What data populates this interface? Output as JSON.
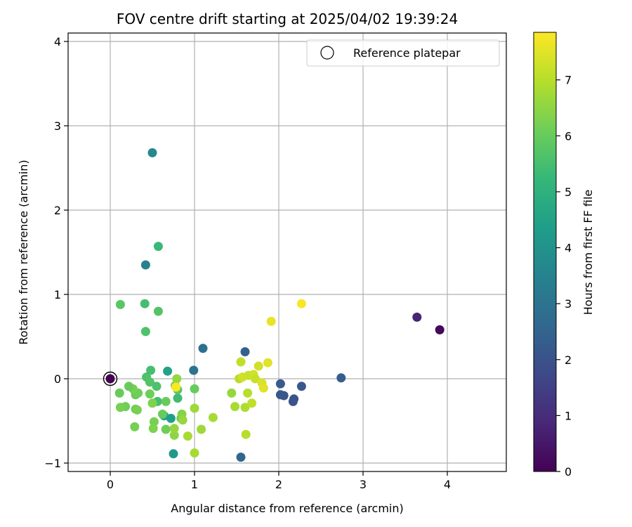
{
  "chart_data": {
    "type": "scatter",
    "title": "FOV centre drift starting at 2025/04/02 19:39:24",
    "xlabel": "Angular distance from reference (arcmin)",
    "ylabel": "Rotation from reference (arcmin)",
    "xlim": [
      -0.5,
      4.7
    ],
    "ylim": [
      -1.1,
      4.1
    ],
    "xticks": [
      0,
      1,
      2,
      3,
      4
    ],
    "yticks": [
      -1,
      0,
      1,
      2,
      3,
      4
    ],
    "grid": true,
    "legend": {
      "placement": "top-right",
      "entries": [
        "Reference platepar"
      ]
    },
    "reference_point": {
      "x": 0,
      "y": 0
    },
    "colorbar": {
      "label": "Hours from first FF file",
      "colormap": "viridis",
      "range": [
        0,
        7.85
      ],
      "ticks": [
        0,
        1,
        2,
        3,
        4,
        5,
        6,
        7
      ]
    },
    "colormap_stops": [
      "#440154",
      "#482878",
      "#3e4989",
      "#31688e",
      "#26828e",
      "#1f9e89",
      "#35b779",
      "#6ece58",
      "#b5de2b",
      "#fde725"
    ],
    "points": [
      {
        "x": 0.0,
        "y": 0.0,
        "h": 0.0
      },
      {
        "x": 3.91,
        "y": 0.58,
        "h": 0.15
      },
      {
        "x": 3.64,
        "y": 0.73,
        "h": 0.8
      },
      {
        "x": 2.74,
        "y": 0.01,
        "h": 2.3
      },
      {
        "x": 2.27,
        "y": -0.09,
        "h": 2.2
      },
      {
        "x": 2.17,
        "y": -0.27,
        "h": 2.0
      },
      {
        "x": 2.18,
        "y": -0.24,
        "h": 2.05
      },
      {
        "x": 2.06,
        "y": -0.2,
        "h": 2.1
      },
      {
        "x": 2.02,
        "y": -0.19,
        "h": 2.15
      },
      {
        "x": 2.02,
        "y": -0.06,
        "h": 2.25
      },
      {
        "x": 1.6,
        "y": 0.32,
        "h": 2.4
      },
      {
        "x": 1.55,
        "y": -0.93,
        "h": 2.6
      },
      {
        "x": 1.1,
        "y": 0.36,
        "h": 2.9
      },
      {
        "x": 0.99,
        "y": 0.1,
        "h": 3.0
      },
      {
        "x": 0.42,
        "y": 1.35,
        "h": 3.5
      },
      {
        "x": 0.5,
        "y": 2.68,
        "h": 3.7
      },
      {
        "x": 0.75,
        "y": -0.89,
        "h": 4.2
      },
      {
        "x": 0.68,
        "y": 0.09,
        "h": 4.5
      },
      {
        "x": 0.64,
        "y": -0.44,
        "h": 4.6
      },
      {
        "x": 0.72,
        "y": -0.47,
        "h": 4.4
      },
      {
        "x": 0.57,
        "y": 1.57,
        "h": 5.3
      },
      {
        "x": 0.41,
        "y": 0.89,
        "h": 5.5
      },
      {
        "x": 0.42,
        "y": 0.56,
        "h": 5.6
      },
      {
        "x": 0.57,
        "y": 0.8,
        "h": 5.7
      },
      {
        "x": 0.12,
        "y": 0.88,
        "h": 5.8
      },
      {
        "x": 0.43,
        "y": 0.02,
        "h": 5.6
      },
      {
        "x": 0.48,
        "y": 0.1,
        "h": 5.5
      },
      {
        "x": 0.47,
        "y": -0.04,
        "h": 5.7
      },
      {
        "x": 0.55,
        "y": -0.09,
        "h": 5.6
      },
      {
        "x": 0.56,
        "y": -0.27,
        "h": 5.5
      },
      {
        "x": 0.8,
        "y": -0.23,
        "h": 5.4
      },
      {
        "x": 0.8,
        "y": -0.13,
        "h": 5.8
      },
      {
        "x": 0.84,
        "y": -0.47,
        "h": 5.9
      },
      {
        "x": 0.62,
        "y": -0.42,
        "h": 6.0
      },
      {
        "x": 0.66,
        "y": -0.6,
        "h": 6.1
      },
      {
        "x": 0.66,
        "y": -0.27,
        "h": 6.0
      },
      {
        "x": 0.47,
        "y": -0.18,
        "h": 6.1
      },
      {
        "x": 0.5,
        "y": -0.29,
        "h": 6.3
      },
      {
        "x": 0.52,
        "y": -0.51,
        "h": 6.2
      },
      {
        "x": 0.51,
        "y": -0.59,
        "h": 6.3
      },
      {
        "x": 0.29,
        "y": -0.57,
        "h": 6.2
      },
      {
        "x": 0.3,
        "y": -0.36,
        "h": 6.1
      },
      {
        "x": 0.32,
        "y": -0.37,
        "h": 6.2
      },
      {
        "x": 0.3,
        "y": -0.19,
        "h": 6.0
      },
      {
        "x": 0.33,
        "y": -0.17,
        "h": 6.1
      },
      {
        "x": 0.27,
        "y": -0.12,
        "h": 6.2
      },
      {
        "x": 0.22,
        "y": -0.09,
        "h": 6.0
      },
      {
        "x": 0.18,
        "y": -0.33,
        "h": 6.1
      },
      {
        "x": 0.12,
        "y": -0.34,
        "h": 6.2
      },
      {
        "x": 0.11,
        "y": -0.17,
        "h": 6.0
      },
      {
        "x": 1.0,
        "y": -0.12,
        "h": 6.0
      },
      {
        "x": 0.76,
        "y": -0.67,
        "h": 6.5
      },
      {
        "x": 0.76,
        "y": -0.59,
        "h": 6.6
      },
      {
        "x": 0.85,
        "y": -0.42,
        "h": 6.4
      },
      {
        "x": 0.86,
        "y": -0.49,
        "h": 6.6
      },
      {
        "x": 0.77,
        "y": -0.08,
        "h": 6.3
      },
      {
        "x": 0.79,
        "y": 0.0,
        "h": 6.6
      },
      {
        "x": 0.92,
        "y": -0.68,
        "h": 6.8
      },
      {
        "x": 1.0,
        "y": -0.35,
        "h": 6.7
      },
      {
        "x": 1.0,
        "y": -0.88,
        "h": 6.8
      },
      {
        "x": 1.08,
        "y": -0.6,
        "h": 6.7
      },
      {
        "x": 1.22,
        "y": -0.46,
        "h": 6.8
      },
      {
        "x": 1.44,
        "y": -0.17,
        "h": 6.6
      },
      {
        "x": 1.48,
        "y": -0.33,
        "h": 6.8
      },
      {
        "x": 1.53,
        "y": 0.0,
        "h": 7.0
      },
      {
        "x": 1.55,
        "y": 0.2,
        "h": 7.1
      },
      {
        "x": 1.57,
        "y": 0.02,
        "h": 7.3
      },
      {
        "x": 1.6,
        "y": -0.34,
        "h": 6.9
      },
      {
        "x": 1.61,
        "y": -0.66,
        "h": 7.0
      },
      {
        "x": 1.63,
        "y": -0.17,
        "h": 7.0
      },
      {
        "x": 1.64,
        "y": 0.04,
        "h": 7.2
      },
      {
        "x": 1.68,
        "y": -0.29,
        "h": 7.1
      },
      {
        "x": 1.7,
        "y": 0.05,
        "h": 7.3
      },
      {
        "x": 1.72,
        "y": 0.0,
        "h": 7.2
      },
      {
        "x": 1.76,
        "y": 0.15,
        "h": 7.3
      },
      {
        "x": 1.8,
        "y": -0.05,
        "h": 7.4
      },
      {
        "x": 1.82,
        "y": -0.11,
        "h": 7.5
      },
      {
        "x": 1.87,
        "y": 0.19,
        "h": 7.5
      },
      {
        "x": 1.91,
        "y": 0.68,
        "h": 7.6
      },
      {
        "x": 2.27,
        "y": 0.89,
        "h": 7.8
      },
      {
        "x": 0.78,
        "y": -0.1,
        "h": 7.8
      }
    ]
  }
}
